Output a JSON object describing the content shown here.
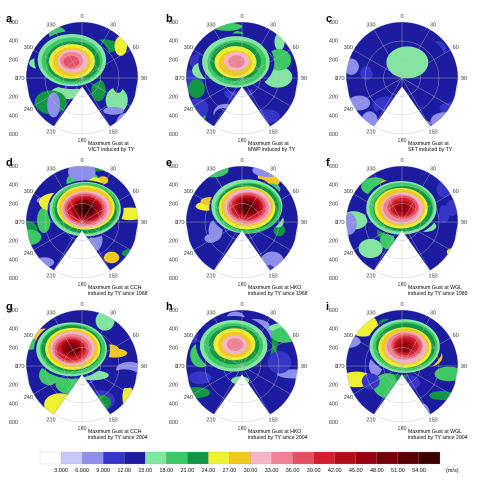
{
  "chart_data": {
    "type": "heatmap",
    "projection": "polar",
    "description_units": "m/s",
    "azimuth_ticks": [
      "0",
      "30",
      "60",
      "90",
      "150",
      "180",
      "210",
      "240",
      "270",
      "300",
      "330"
    ],
    "radial_ticks": [
      "600",
      "400",
      "200",
      "0",
      "200",
      "400",
      "600"
    ],
    "panels": [
      {
        "id": "a",
        "caption": [
          "Maximum Gust at",
          "VICT induced by TY"
        ],
        "peak": 36,
        "peak_az": 330,
        "peak_r": 0.35
      },
      {
        "id": "b",
        "caption": [
          "Maximum Gust at",
          "MWP induced by TY"
        ],
        "peak": 33,
        "peak_az": 340,
        "peak_r": 0.3
      },
      {
        "id": "c",
        "caption": [
          "Maximum Gust at",
          "SFT induced by TY"
        ],
        "peak": 15,
        "peak_az": 20,
        "peak_r": 0.3
      },
      {
        "id": "d",
        "caption": [
          "Maximum Gust at CCH",
          "induced by TY since 1968"
        ],
        "peak": 54,
        "peak_az": 15,
        "peak_r": 0.25
      },
      {
        "id": "e",
        "caption": [
          "Maximum Gust at HKO",
          "induced by TY since 1968"
        ],
        "peak": 51,
        "peak_az": 20,
        "peak_r": 0.28
      },
      {
        "id": "f",
        "caption": [
          "Maximum Gust at WGL",
          "induced by TY since 1989"
        ],
        "peak": 45,
        "peak_az": 0,
        "peak_r": 0.25
      },
      {
        "id": "g",
        "caption": [
          "Maximum Gust at CCH",
          "induced by TY since 2004"
        ],
        "peak": 48,
        "peak_az": 330,
        "peak_r": 0.35
      },
      {
        "id": "h",
        "caption": [
          "Maximum Gust at HKO",
          "induced by TY since 2004"
        ],
        "peak": 33,
        "peak_az": 340,
        "peak_r": 0.4
      },
      {
        "id": "i",
        "caption": [
          "Maximum Gust at WGL",
          "induced by TY since 2004"
        ],
        "peak": 45,
        "peak_az": 10,
        "peak_r": 0.35
      }
    ],
    "colorbar": {
      "unit": "(m/s)",
      "labels": [
        "3.000",
        "6.000",
        "9.000",
        "12.00",
        "15.00",
        "18.00",
        "21.00",
        "24.00",
        "27.00",
        "30.00",
        "33.00",
        "36.00",
        "39.00",
        "42.00",
        "45.00",
        "48.00",
        "51.00",
        "54.00"
      ],
      "colors": [
        "#ffffff",
        "#c8c8f5",
        "#8e8eeb",
        "#3535c8",
        "#1c1ca0",
        "#82e6a0",
        "#3cc864",
        "#129646",
        "#f0f032",
        "#f0c81e",
        "#f5b4c8",
        "#f08296",
        "#e65064",
        "#d21e2d",
        "#b40f19",
        "#96000f",
        "#78000a",
        "#5a0005",
        "#3c0000"
      ]
    }
  }
}
